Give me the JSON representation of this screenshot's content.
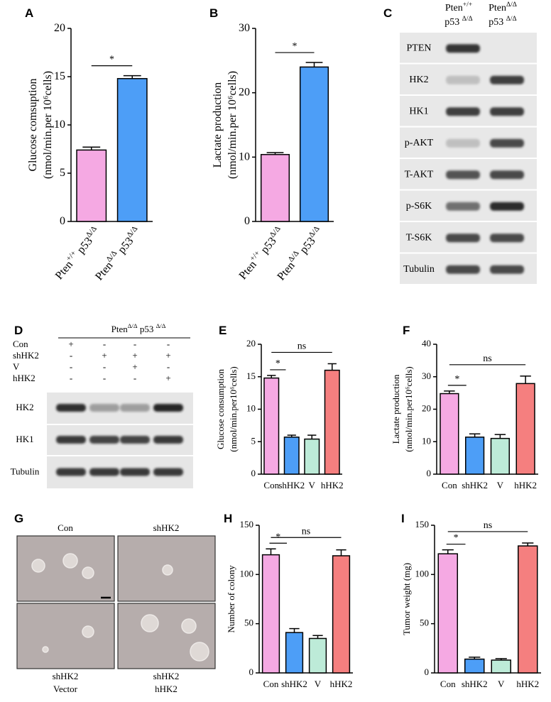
{
  "chart_data": [
    {
      "type": "bar",
      "panel": "A",
      "ylabel": [
        "Glucose comsuption",
        "(nmol/min.per 10⁶cells)"
      ],
      "categories": [
        "Pten+/+ p53Δ/Δ",
        "PtenΔ/Δ p53Δ/Δ"
      ],
      "values": [
        7.4,
        14.8
      ],
      "errors": [
        0.3,
        0.3
      ],
      "colors": [
        "#f5a9e3",
        "#4d9ef7"
      ],
      "ylim": [
        0,
        20
      ],
      "yticks": [
        0,
        5,
        10,
        15,
        20
      ],
      "annotations": [
        "*"
      ]
    },
    {
      "type": "bar",
      "panel": "B",
      "ylabel": [
        "Lactate production",
        "(nmol/min.per 10⁶cells)"
      ],
      "categories": [
        "Pten+/+ p53Δ/Δ",
        "PtenΔ/Δ p53Δ/Δ"
      ],
      "values": [
        10.4,
        24
      ],
      "errors": [
        0.3,
        0.7
      ],
      "colors": [
        "#f5a9e3",
        "#4d9ef7"
      ],
      "ylim": [
        0,
        30
      ],
      "yticks": [
        0,
        10,
        20,
        30
      ],
      "annotations": [
        "*"
      ]
    },
    {
      "type": "bar",
      "panel": "E",
      "ylabel": [
        "Glucose consumption",
        "(nmol/min.per10⁶cells)"
      ],
      "categories": [
        "Con",
        "shHK2",
        "V",
        "hHK2"
      ],
      "values": [
        14.8,
        5.7,
        5.4,
        16.0
      ],
      "errors": [
        0.4,
        0.3,
        0.6,
        1.0
      ],
      "colors": [
        "#f5a9e3",
        "#4d9ef7",
        "#bdebd8",
        "#f57f7f"
      ],
      "ylim": [
        0,
        20
      ],
      "yticks": [
        0,
        5,
        10,
        15,
        20
      ],
      "annotations": [
        "*",
        "ns"
      ]
    },
    {
      "type": "bar",
      "panel": "F",
      "ylabel": [
        "Lactate production",
        "(nmol/min.per10⁶cells)"
      ],
      "categories": [
        "Con",
        "shHK2",
        "V",
        "hHK2"
      ],
      "values": [
        24.8,
        11.4,
        11.0,
        27.9
      ],
      "errors": [
        0.8,
        1.0,
        1.2,
        2.3
      ],
      "colors": [
        "#f5a9e3",
        "#4d9ef7",
        "#bdebd8",
        "#f57f7f"
      ],
      "ylim": [
        0,
        40
      ],
      "yticks": [
        0,
        10,
        20,
        30,
        40
      ],
      "annotations": [
        "*",
        "ns"
      ]
    },
    {
      "type": "bar",
      "panel": "H",
      "ylabel": [
        "Number of colony"
      ],
      "categories": [
        "Con",
        "shHK2",
        "V",
        "hHK2"
      ],
      "values": [
        120,
        41,
        35,
        119
      ],
      "errors": [
        6,
        4,
        3,
        6
      ],
      "colors": [
        "#f5a9e3",
        "#4d9ef7",
        "#bdebd8",
        "#f57f7f"
      ],
      "ylim": [
        0,
        150
      ],
      "yticks": [
        0,
        50,
        100,
        150
      ],
      "annotations": [
        "*",
        "ns"
      ]
    },
    {
      "type": "bar",
      "panel": "I",
      "ylabel": [
        "Tumor weight (mg)"
      ],
      "categories": [
        "Con",
        "shHK2",
        "V",
        "hHK2"
      ],
      "values": [
        121,
        14,
        13,
        129
      ],
      "errors": [
        4,
        2,
        1.5,
        3
      ],
      "colors": [
        "#f5a9e3",
        "#4d9ef7",
        "#bdebd8",
        "#f57f7f"
      ],
      "ylim": [
        0,
        150
      ],
      "yticks": [
        0,
        50,
        100,
        150
      ],
      "annotations": [
        "*",
        "ns"
      ]
    }
  ],
  "blot_c": {
    "panel": "C",
    "columns": [
      [
        "Pten+/+",
        "p53 Δ/Δ"
      ],
      [
        "PtenΔ/Δ",
        "p53 Δ/Δ"
      ]
    ],
    "rows": [
      "PTEN",
      "HK2",
      "HK1",
      "p-AKT",
      "T-AKT",
      "p-S6K",
      "T-S6K",
      "Tubulin"
    ]
  },
  "blot_d": {
    "panel": "D",
    "header": "PtenΔ/Δ p53 Δ/Δ",
    "conditions": [
      {
        "label": "Con",
        "marks": [
          "+",
          "-",
          "-",
          "-"
        ]
      },
      {
        "label": "shHK2",
        "marks": [
          "-",
          "+",
          "+",
          "+"
        ]
      },
      {
        "label": "V",
        "marks": [
          "-",
          "-",
          "+",
          "-"
        ]
      },
      {
        "label": "hHK2",
        "marks": [
          "-",
          "-",
          "-",
          "+"
        ]
      }
    ],
    "rows": [
      "HK2",
      "HK1",
      "Tubulin"
    ]
  },
  "images_g": {
    "panel": "G",
    "images": [
      {
        "label": [
          "Con"
        ]
      },
      {
        "label": [
          "shHK2"
        ]
      },
      {
        "label": [
          "shHK2",
          "Vector"
        ]
      },
      {
        "label": [
          "shHK2",
          "hHK2"
        ]
      }
    ]
  }
}
